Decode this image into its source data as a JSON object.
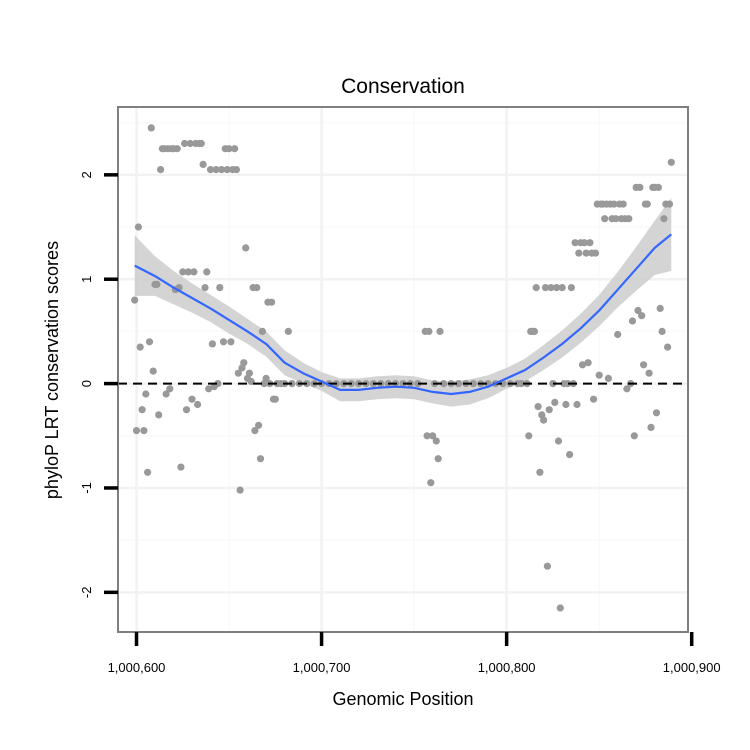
{
  "chart_data": {
    "type": "scatter",
    "title": "Conservation",
    "xlabel": "Genomic Position",
    "ylabel": "phyloP LRT conservation scores",
    "xlim": [
      1000590,
      1000898
    ],
    "ylim": [
      -2.38,
      2.65
    ],
    "x_ticks": [
      {
        "value": 1000600,
        "label": "1,000,600"
      },
      {
        "value": 1000700,
        "label": "1,000,700"
      },
      {
        "value": 1000800,
        "label": "1,000,800"
      },
      {
        "value": 1000900,
        "label": "1,000,900"
      }
    ],
    "y_ticks": [
      {
        "value": -2,
        "label": "-2"
      },
      {
        "value": -1,
        "label": "-1"
      },
      {
        "value": 0,
        "label": "0"
      },
      {
        "value": 1,
        "label": "1"
      },
      {
        "value": 2,
        "label": "2"
      }
    ],
    "grid": true,
    "reference_line": {
      "y": 0,
      "style": "dashed",
      "color": "#000000"
    },
    "point_color": "#999999",
    "smooth_color": "#3366FF",
    "band_color": "#CCCCCC",
    "points": [
      [
        1000599,
        0.8
      ],
      [
        1000600,
        -0.45
      ],
      [
        1000601,
        1.5
      ],
      [
        1000602,
        0.35
      ],
      [
        1000603,
        -0.25
      ],
      [
        1000604,
        -0.45
      ],
      [
        1000605,
        -0.1
      ],
      [
        1000606,
        -0.85
      ],
      [
        1000607,
        0.4
      ],
      [
        1000608,
        2.45
      ],
      [
        1000609,
        0.12
      ],
      [
        1000610,
        0.95
      ],
      [
        1000611,
        0.95
      ],
      [
        1000612,
        -0.3
      ],
      [
        1000613,
        2.05
      ],
      [
        1000614,
        2.25
      ],
      [
        1000615,
        2.25
      ],
      [
        1000616,
        -0.1
      ],
      [
        1000617,
        2.25
      ],
      [
        1000618,
        -0.05
      ],
      [
        1000619,
        2.25
      ],
      [
        1000620,
        2.25
      ],
      [
        1000621,
        0.9
      ],
      [
        1000622,
        2.25
      ],
      [
        1000623,
        0.92
      ],
      [
        1000624,
        -0.8
      ],
      [
        1000625,
        1.07
      ],
      [
        1000626,
        2.3
      ],
      [
        1000627,
        -0.25
      ],
      [
        1000628,
        1.07
      ],
      [
        1000629,
        2.3
      ],
      [
        1000630,
        -0.15
      ],
      [
        1000631,
        1.07
      ],
      [
        1000632,
        2.3
      ],
      [
        1000633,
        -0.2
      ],
      [
        1000634,
        2.3
      ],
      [
        1000635,
        2.3
      ],
      [
        1000636,
        2.1
      ],
      [
        1000637,
        0.92
      ],
      [
        1000638,
        1.07
      ],
      [
        1000639,
        -0.05
      ],
      [
        1000640,
        2.05
      ],
      [
        1000641,
        0.38
      ],
      [
        1000642,
        -0.03
      ],
      [
        1000643,
        2.05
      ],
      [
        1000644,
        0.0
      ],
      [
        1000645,
        0.92
      ],
      [
        1000646,
        2.05
      ],
      [
        1000647,
        0.4
      ],
      [
        1000648,
        2.25
      ],
      [
        1000649,
        2.05
      ],
      [
        1000650,
        2.25
      ],
      [
        1000651,
        0.4
      ],
      [
        1000652,
        2.05
      ],
      [
        1000653,
        2.25
      ],
      [
        1000654,
        2.05
      ],
      [
        1000655,
        0.1
      ],
      [
        1000656,
        -1.02
      ],
      [
        1000657,
        0.15
      ],
      [
        1000658,
        0.2
      ],
      [
        1000659,
        1.3
      ],
      [
        1000660,
        0.05
      ],
      [
        1000661,
        0.1
      ],
      [
        1000662,
        0.02
      ],
      [
        1000663,
        0.92
      ],
      [
        1000664,
        -0.45
      ],
      [
        1000665,
        0.92
      ],
      [
        1000666,
        -0.4
      ],
      [
        1000667,
        -0.72
      ],
      [
        1000668,
        0.5
      ],
      [
        1000669,
        0.0
      ],
      [
        1000670,
        0.05
      ],
      [
        1000671,
        0.78
      ],
      [
        1000672,
        0.0
      ],
      [
        1000673,
        0.78
      ],
      [
        1000674,
        -0.15
      ],
      [
        1000675,
        -0.15
      ],
      [
        1000676,
        0.0
      ],
      [
        1000678,
        0.0
      ],
      [
        1000680,
        0.0
      ],
      [
        1000682,
        0.5
      ],
      [
        1000684,
        0.0
      ],
      [
        1000688,
        0.0
      ],
      [
        1000692,
        0.0
      ],
      [
        1000696,
        0.0
      ],
      [
        1000700,
        0.0
      ],
      [
        1000704,
        0.0
      ],
      [
        1000708,
        0.0
      ],
      [
        1000712,
        0.0
      ],
      [
        1000716,
        0.0
      ],
      [
        1000720,
        0.0
      ],
      [
        1000724,
        0.0
      ],
      [
        1000728,
        0.0
      ],
      [
        1000732,
        0.0
      ],
      [
        1000736,
        0.0
      ],
      [
        1000740,
        0.0
      ],
      [
        1000744,
        0.0
      ],
      [
        1000748,
        0.0
      ],
      [
        1000752,
        0.0
      ],
      [
        1000756,
        0.5
      ],
      [
        1000757,
        -0.5
      ],
      [
        1000758,
        0.5
      ],
      [
        1000759,
        -0.95
      ],
      [
        1000760,
        -0.5
      ],
      [
        1000761,
        0.0
      ],
      [
        1000762,
        -0.55
      ],
      [
        1000763,
        -0.72
      ],
      [
        1000764,
        0.5
      ],
      [
        1000766,
        0.0
      ],
      [
        1000770,
        0.0
      ],
      [
        1000774,
        0.0
      ],
      [
        1000778,
        0.0
      ],
      [
        1000782,
        0.0
      ],
      [
        1000786,
        0.0
      ],
      [
        1000790,
        0.0
      ],
      [
        1000794,
        0.0
      ],
      [
        1000798,
        0.0
      ],
      [
        1000802,
        0.0
      ],
      [
        1000806,
        0.0
      ],
      [
        1000808,
        0.0
      ],
      [
        1000811,
        0.0
      ],
      [
        1000812,
        -0.5
      ],
      [
        1000813,
        0.5
      ],
      [
        1000814,
        0.5
      ],
      [
        1000815,
        0.5
      ],
      [
        1000816,
        0.92
      ],
      [
        1000817,
        -0.22
      ],
      [
        1000818,
        -0.85
      ],
      [
        1000819,
        -0.3
      ],
      [
        1000820,
        -0.35
      ],
      [
        1000821,
        0.92
      ],
      [
        1000822,
        -1.75
      ],
      [
        1000823,
        -0.25
      ],
      [
        1000824,
        0.92
      ],
      [
        1000825,
        0.0
      ],
      [
        1000826,
        -0.18
      ],
      [
        1000827,
        0.92
      ],
      [
        1000828,
        -0.55
      ],
      [
        1000829,
        -2.15
      ],
      [
        1000830,
        0.92
      ],
      [
        1000831,
        0.0
      ],
      [
        1000832,
        -0.2
      ],
      [
        1000833,
        0.0
      ],
      [
        1000834,
        -0.68
      ],
      [
        1000835,
        0.92
      ],
      [
        1000836,
        0.0
      ],
      [
        1000837,
        1.35
      ],
      [
        1000838,
        -0.2
      ],
      [
        1000839,
        1.25
      ],
      [
        1000840,
        1.35
      ],
      [
        1000841,
        0.18
      ],
      [
        1000842,
        1.35
      ],
      [
        1000843,
        1.25
      ],
      [
        1000844,
        0.2
      ],
      [
        1000845,
        1.35
      ],
      [
        1000846,
        1.25
      ],
      [
        1000847,
        -0.15
      ],
      [
        1000848,
        1.25
      ],
      [
        1000849,
        1.72
      ],
      [
        1000850,
        0.08
      ],
      [
        1000851,
        1.72
      ],
      [
        1000852,
        1.72
      ],
      [
        1000853,
        1.58
      ],
      [
        1000854,
        1.72
      ],
      [
        1000855,
        0.05
      ],
      [
        1000856,
        1.72
      ],
      [
        1000857,
        1.58
      ],
      [
        1000858,
        1.72
      ],
      [
        1000859,
        1.58
      ],
      [
        1000860,
        0.47
      ],
      [
        1000861,
        1.72
      ],
      [
        1000862,
        1.58
      ],
      [
        1000863,
        1.72
      ],
      [
        1000864,
        1.58
      ],
      [
        1000865,
        -0.05
      ],
      [
        1000866,
        1.58
      ],
      [
        1000867,
        0.0
      ],
      [
        1000868,
        0.6
      ],
      [
        1000869,
        -0.5
      ],
      [
        1000870,
        1.88
      ],
      [
        1000871,
        0.7
      ],
      [
        1000872,
        1.88
      ],
      [
        1000873,
        0.65
      ],
      [
        1000874,
        0.18
      ],
      [
        1000875,
        1.72
      ],
      [
        1000876,
        1.72
      ],
      [
        1000877,
        0.1
      ],
      [
        1000878,
        -0.42
      ],
      [
        1000879,
        1.88
      ],
      [
        1000880,
        1.88
      ],
      [
        1000881,
        -0.28
      ],
      [
        1000882,
        1.88
      ],
      [
        1000883,
        0.72
      ],
      [
        1000884,
        0.5
      ],
      [
        1000885,
        1.58
      ],
      [
        1000886,
        1.72
      ],
      [
        1000887,
        0.35
      ],
      [
        1000888,
        1.72
      ],
      [
        1000889,
        2.12
      ]
    ],
    "smooth_line": [
      [
        1000599,
        1.13
      ],
      [
        1000610,
        1.03
      ],
      [
        1000620,
        0.92
      ],
      [
        1000630,
        0.82
      ],
      [
        1000640,
        0.72
      ],
      [
        1000650,
        0.61
      ],
      [
        1000660,
        0.5
      ],
      [
        1000670,
        0.38
      ],
      [
        1000680,
        0.2
      ],
      [
        1000690,
        0.1
      ],
      [
        1000700,
        0.02
      ],
      [
        1000710,
        -0.06
      ],
      [
        1000720,
        -0.06
      ],
      [
        1000730,
        -0.04
      ],
      [
        1000740,
        -0.03
      ],
      [
        1000750,
        -0.04
      ],
      [
        1000760,
        -0.08
      ],
      [
        1000770,
        -0.1
      ],
      [
        1000780,
        -0.08
      ],
      [
        1000790,
        -0.03
      ],
      [
        1000800,
        0.05
      ],
      [
        1000810,
        0.13
      ],
      [
        1000820,
        0.25
      ],
      [
        1000830,
        0.38
      ],
      [
        1000840,
        0.53
      ],
      [
        1000850,
        0.7
      ],
      [
        1000860,
        0.9
      ],
      [
        1000870,
        1.1
      ],
      [
        1000880,
        1.3
      ],
      [
        1000889,
        1.43
      ]
    ],
    "band_upper": [
      [
        1000599,
        1.42
      ],
      [
        1000610,
        1.22
      ],
      [
        1000620,
        1.08
      ],
      [
        1000630,
        0.96
      ],
      [
        1000640,
        0.85
      ],
      [
        1000650,
        0.74
      ],
      [
        1000660,
        0.62
      ],
      [
        1000670,
        0.5
      ],
      [
        1000680,
        0.32
      ],
      [
        1000690,
        0.2
      ],
      [
        1000700,
        0.11
      ],
      [
        1000710,
        0.05
      ],
      [
        1000720,
        0.05
      ],
      [
        1000730,
        0.07
      ],
      [
        1000740,
        0.08
      ],
      [
        1000750,
        0.07
      ],
      [
        1000760,
        0.03
      ],
      [
        1000770,
        0.02
      ],
      [
        1000780,
        0.04
      ],
      [
        1000790,
        0.08
      ],
      [
        1000800,
        0.15
      ],
      [
        1000810,
        0.24
      ],
      [
        1000820,
        0.37
      ],
      [
        1000830,
        0.51
      ],
      [
        1000840,
        0.67
      ],
      [
        1000850,
        0.85
      ],
      [
        1000860,
        1.07
      ],
      [
        1000870,
        1.31
      ],
      [
        1000880,
        1.56
      ],
      [
        1000889,
        1.78
      ]
    ],
    "band_lower": [
      [
        1000599,
        0.84
      ],
      [
        1000610,
        0.84
      ],
      [
        1000620,
        0.76
      ],
      [
        1000630,
        0.68
      ],
      [
        1000640,
        0.59
      ],
      [
        1000650,
        0.48
      ],
      [
        1000660,
        0.38
      ],
      [
        1000670,
        0.26
      ],
      [
        1000680,
        0.08
      ],
      [
        1000690,
        0.0
      ],
      [
        1000700,
        -0.07
      ],
      [
        1000710,
        -0.17
      ],
      [
        1000720,
        -0.17
      ],
      [
        1000730,
        -0.15
      ],
      [
        1000740,
        -0.14
      ],
      [
        1000750,
        -0.15
      ],
      [
        1000760,
        -0.19
      ],
      [
        1000770,
        -0.22
      ],
      [
        1000780,
        -0.2
      ],
      [
        1000790,
        -0.14
      ],
      [
        1000800,
        -0.05
      ],
      [
        1000810,
        0.02
      ],
      [
        1000820,
        0.13
      ],
      [
        1000830,
        0.25
      ],
      [
        1000840,
        0.39
      ],
      [
        1000850,
        0.55
      ],
      [
        1000860,
        0.73
      ],
      [
        1000870,
        0.89
      ],
      [
        1000880,
        1.04
      ],
      [
        1000889,
        1.08
      ]
    ]
  }
}
